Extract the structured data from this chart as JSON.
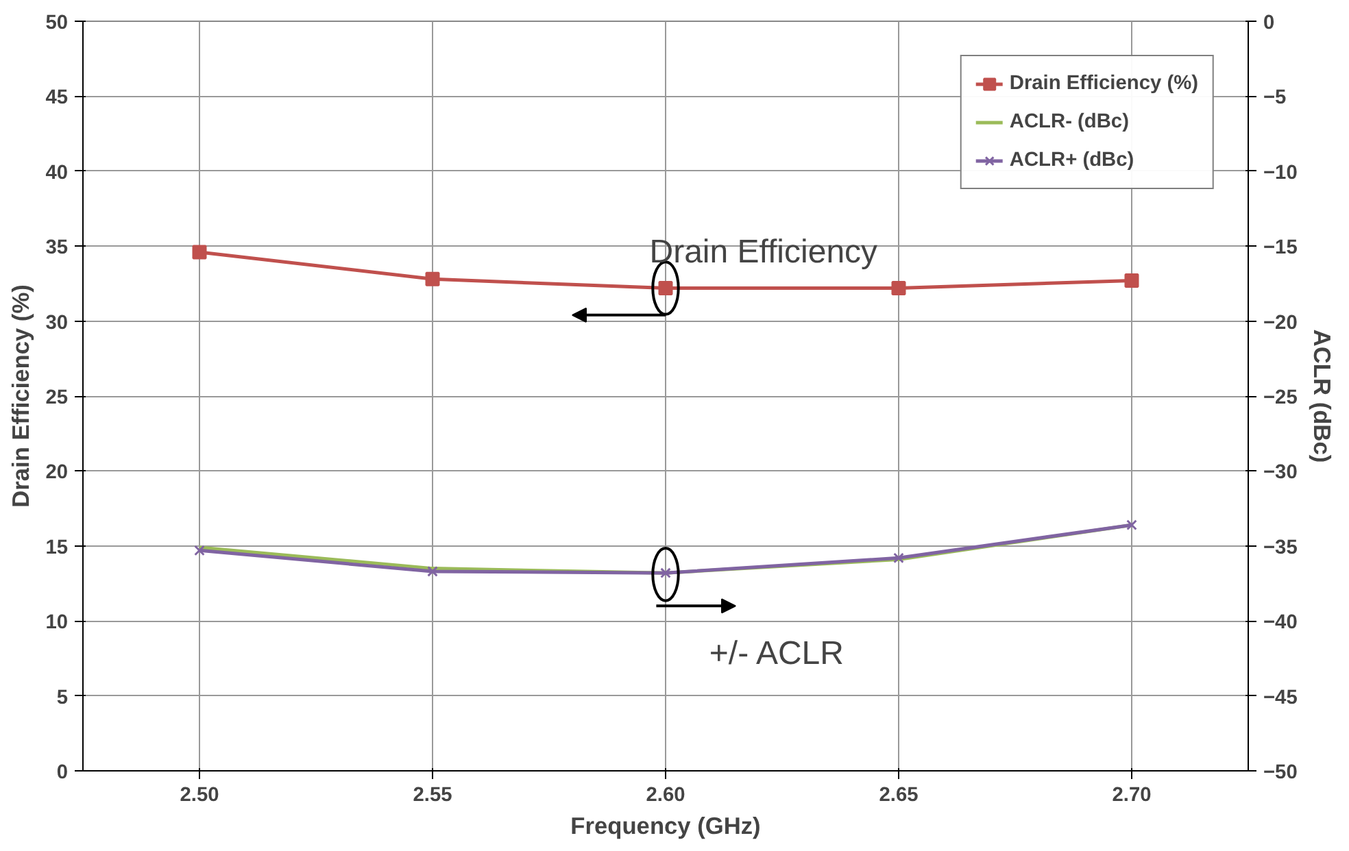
{
  "chart_data": {
    "type": "line",
    "xlabel": "Frequency (GHz)",
    "ylabel": "Drain Efficiency (%)",
    "y2label": "ACLR (dBc)",
    "x": [
      2.5,
      2.55,
      2.6,
      2.65,
      2.7
    ],
    "series": [
      {
        "name": "Drain Efficiency (%)",
        "color": "#c0504d",
        "marker": "square",
        "values": [
          34.6,
          32.8,
          32.2,
          32.2,
          32.7
        ]
      },
      {
        "name": "ACLR- (dBc)",
        "color": "#9bbb59",
        "marker": "none",
        "axis": "y2",
        "values": [
          -35.1,
          -36.5,
          -36.8,
          -35.9,
          -33.6
        ]
      },
      {
        "name": "ACLR+ (dBc)",
        "color": "#8064a2",
        "marker": "cross",
        "axis": "y2",
        "values": [
          -35.3,
          -36.7,
          -36.8,
          -35.8,
          -33.6
        ]
      }
    ],
    "xlim": [
      2.475,
      2.725
    ],
    "xticks": [
      {
        "value": 2.5,
        "label": "2.50"
      },
      {
        "value": 2.55,
        "label": "2.55"
      },
      {
        "value": 2.6,
        "label": "2.60"
      },
      {
        "value": 2.65,
        "label": "2.65"
      },
      {
        "value": 2.7,
        "label": "2.70"
      }
    ],
    "ylim": [
      0,
      50
    ],
    "yticks": [
      0,
      5,
      10,
      15,
      20,
      25,
      30,
      35,
      40,
      45,
      50
    ],
    "y2lim": [
      -50,
      0
    ],
    "y2ticks": [
      -50,
      -45,
      -40,
      -35,
      -30,
      -25,
      -20,
      -15,
      -10,
      -5,
      0
    ],
    "grid": true,
    "legend": "top right",
    "line_style": "solid",
    "annotations": [
      "Drain Efficiency",
      "+/- ACLR"
    ]
  }
}
